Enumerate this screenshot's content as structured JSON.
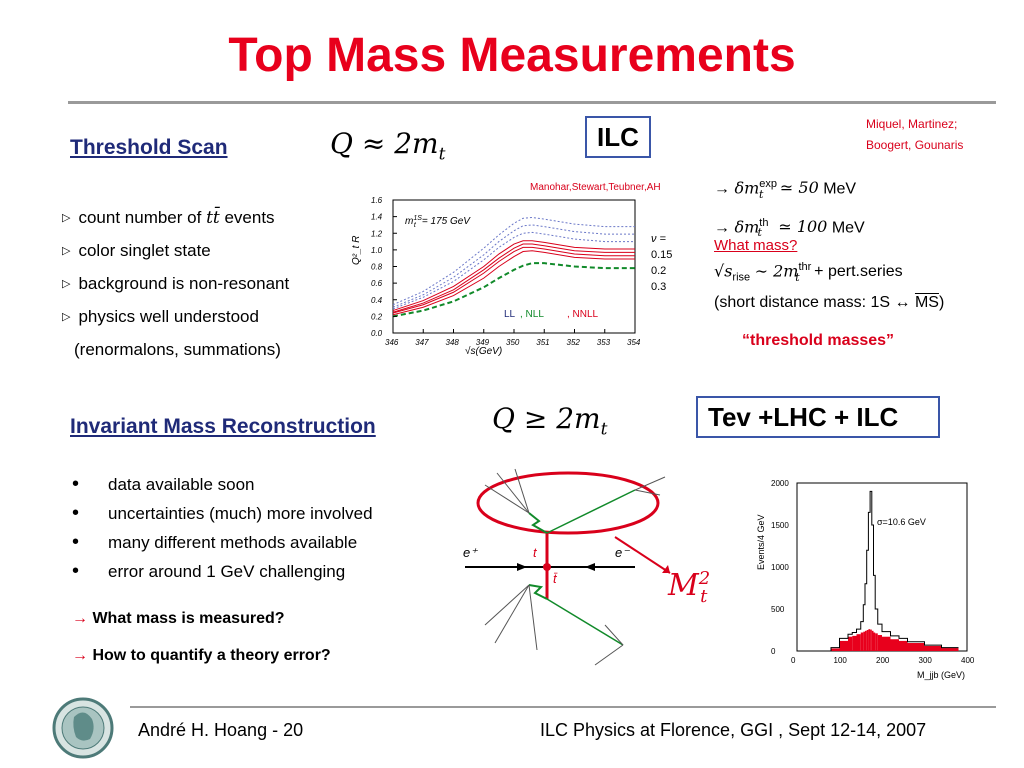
{
  "title": "Top Mass Measurements",
  "refs": {
    "line1": "Miquel, Martinez;",
    "line2": "Boogert,  Gounaris",
    "plot_ref": "Manohar,Stewart,Teubner,AH"
  },
  "threshold": {
    "heading": "Threshold Scan",
    "condition_tex": "Q ≈ 2m",
    "condition_sub": "t",
    "box": "ILC",
    "items": [
      "count number of t t̄ events",
      "color singlet state",
      "background is non-resonant",
      "physics well understood",
      "(renormalons, summations)"
    ],
    "items_prefix": "count number of",
    "items_suffix": "events",
    "tt": "tt̄",
    "results": [
      {
        "arrow": "→",
        "sym": "δm",
        "sup": "exp",
        "sub": "t",
        "rel": "≃ 50",
        "unit": "MeV"
      },
      {
        "arrow": "→",
        "sym": "δm",
        "sup": "th",
        "sub": "t",
        "rel": "≃ 100",
        "unit": "MeV"
      }
    ],
    "what_mass": "What mass?",
    "rise": {
      "lhs": "√s",
      "lhs_sub": "rise",
      "rel": "∼ 2m",
      "sup": "thr",
      "sub": "t",
      "rest": "+ pert.series"
    },
    "short_dist": "(short distance mass:  1S ↔ MS)",
    "short_pre": "(short distance mass:  1S ↔",
    "ms": "MS",
    "short_post": ")",
    "quote": "“threshold masses”"
  },
  "invariant": {
    "heading": "Invariant  Mass Reconstruction",
    "condition_tex": "Q ≥ 2m",
    "condition_sub": "t",
    "box": "Tev +LHC + ILC",
    "bullets": [
      "data available soon",
      "uncertainties (much) more involved",
      "many different methods available",
      "error around 1 GeV challenging"
    ],
    "questions": [
      {
        "arrow": "→",
        "text": "What mass is measured?"
      },
      {
        "arrow": "→",
        "text": "How to quantify a theory error?"
      }
    ],
    "m2": "M",
    "m2_sub": "t",
    "m2_sup": "2"
  },
  "feynman": {
    "ep": "e⁺",
    "em": "e⁻",
    "t": "t",
    "tbar": "t̄"
  },
  "footer": {
    "left": "André H. Hoang  - 20",
    "right": "ILC Physics at Florence, GGI , Sept 12-14, 2007"
  },
  "colors": {
    "title": "#e8001c",
    "heading": "#1f2a78",
    "box_border": "#3a56a8",
    "red": "#d9001b",
    "rule": "#9a9a9a"
  },
  "chart_data": [
    {
      "type": "line",
      "xlabel": "√s(GeV)",
      "ylabel": "Q²_t R",
      "xlim": [
        346,
        354
      ],
      "ylim": [
        0.0,
        1.6
      ],
      "xticks": [
        "346",
        "347",
        "348",
        "349",
        "350",
        "351",
        "352",
        "353",
        "354"
      ],
      "yticks": [
        "0.0",
        "0.2",
        "0.4",
        "0.6",
        "0.8",
        "1.0",
        "1.2",
        "1.4",
        "1.6"
      ],
      "annotation": "m¹ˢ_t = 175 GeV",
      "annotation_pre": "m",
      "annotation_sup": "1S",
      "annotation_sub": "t",
      "annotation_post": "= 175 GeV",
      "nu_label": "ν =",
      "nu_values": [
        "0.15",
        "0.2",
        "0.3"
      ],
      "legend": {
        "ll": "LL",
        "nll": ", NLL",
        "nnll": ", NNLL"
      },
      "x": [
        346.0,
        347.0,
        348.0,
        349.0,
        349.5,
        350.0,
        350.3,
        350.6,
        351.0,
        352.0,
        353.0,
        354.0
      ],
      "series": [
        {
          "values": [
            0.22,
            0.31,
            0.45,
            0.66,
            0.8,
            0.92,
            0.98,
            0.99,
            0.97,
            0.91,
            0.89,
            0.89
          ]
        },
        {
          "values": [
            0.24,
            0.34,
            0.49,
            0.72,
            0.86,
            0.98,
            1.03,
            1.03,
            1.01,
            0.95,
            0.93,
            0.93
          ]
        },
        {
          "values": [
            0.25,
            0.36,
            0.52,
            0.76,
            0.9,
            1.02,
            1.07,
            1.07,
            1.05,
            0.99,
            0.97,
            0.97
          ]
        },
        {
          "values": [
            0.27,
            0.39,
            0.56,
            0.8,
            0.95,
            1.07,
            1.11,
            1.11,
            1.09,
            1.03,
            1.01,
            1.01
          ]
        },
        {
          "values": [
            0.29,
            0.43,
            0.62,
            0.88,
            1.03,
            1.15,
            1.2,
            1.21,
            1.19,
            1.13,
            1.1,
            1.1
          ]
        },
        {
          "values": [
            0.31,
            0.46,
            0.67,
            0.94,
            1.1,
            1.23,
            1.29,
            1.3,
            1.28,
            1.22,
            1.19,
            1.19
          ]
        },
        {
          "values": [
            0.34,
            0.5,
            0.73,
            1.02,
            1.18,
            1.32,
            1.38,
            1.39,
            1.37,
            1.31,
            1.28,
            1.28
          ]
        },
        {
          "values": [
            0.2,
            0.27,
            0.38,
            0.55,
            0.66,
            0.76,
            0.81,
            0.84,
            0.84,
            0.8,
            0.78,
            0.78
          ]
        }
      ]
    },
    {
      "type": "bar",
      "xlabel": "M_jjb (GeV)",
      "ylabel": "Events/4 GeV",
      "xlim": [
        0,
        400
      ],
      "ylim": [
        0,
        2000
      ],
      "xticks": [
        "0",
        "100",
        "200",
        "300",
        "400"
      ],
      "yticks": [
        "0",
        "500",
        "1000",
        "1500",
        "2000"
      ],
      "annotation": "σ=10.6 GeV",
      "x": [
        60,
        80,
        100,
        120,
        130,
        140,
        150,
        156,
        160,
        164,
        168,
        172,
        176,
        180,
        184,
        190,
        200,
        220,
        240,
        260,
        300,
        340,
        380
      ],
      "outline": [
        0,
        40,
        150,
        200,
        220,
        260,
        350,
        550,
        800,
        1200,
        1650,
        1900,
        1500,
        900,
        500,
        320,
        230,
        180,
        150,
        110,
        70,
        40,
        20
      ],
      "filled": [
        0,
        30,
        120,
        170,
        180,
        200,
        220,
        230,
        240,
        250,
        260,
        255,
        240,
        220,
        210,
        190,
        170,
        140,
        120,
        95,
        60,
        35,
        15
      ]
    }
  ]
}
